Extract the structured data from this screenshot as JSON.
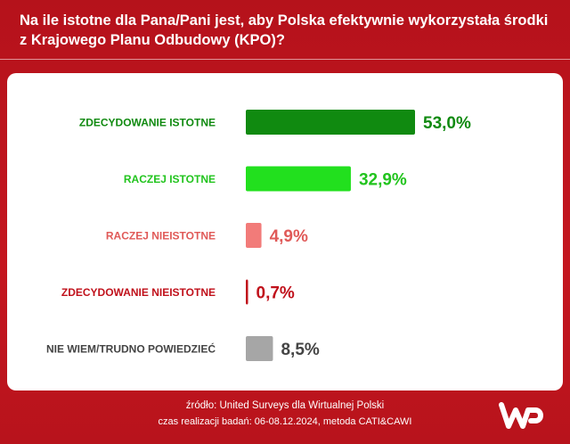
{
  "header": {
    "title_line1": "Na ile istotne dla Pana/Pani jest, aby Polska efektywnie wykorzystała środki",
    "title_line2": "z Krajowego Planu Odbudowy (KPO)?"
  },
  "chart_data": {
    "type": "bar",
    "orientation": "horizontal",
    "title": "Na ile istotne dla Pana/Pani jest, aby Polska efektywnie wykorzystała środki z Krajowego Planu Odbudowy (KPO)?",
    "categories": [
      "ZDECYDOWANIE ISTOTNE",
      "RACZEJ ISTOTNE",
      "RACZEJ NIEISTOTNE",
      "ZDECYDOWANIE NIEISTOTNE",
      "NIE WIEM/TRUDNO POWIEDZIEĆ"
    ],
    "values": [
      53.0,
      32.9,
      4.9,
      0.7,
      8.5
    ],
    "value_labels": [
      "53,0%",
      "32,9%",
      "4,9%",
      "0,7%",
      "8,5%"
    ],
    "colors": [
      "#108a10",
      "#22e01e",
      "#f27b79",
      "#c0111b",
      "#a6a6a6"
    ],
    "xlim": [
      0,
      53.0
    ],
    "unit": "%"
  },
  "footer": {
    "source": "źródło: United Surveys dla Wirtualnej Polski",
    "period": "czas realizacji badań: 06-08.12.2024, metoda CATI&CAWI"
  },
  "logo": {
    "name": "wp-logo",
    "color": "#ffffff"
  }
}
